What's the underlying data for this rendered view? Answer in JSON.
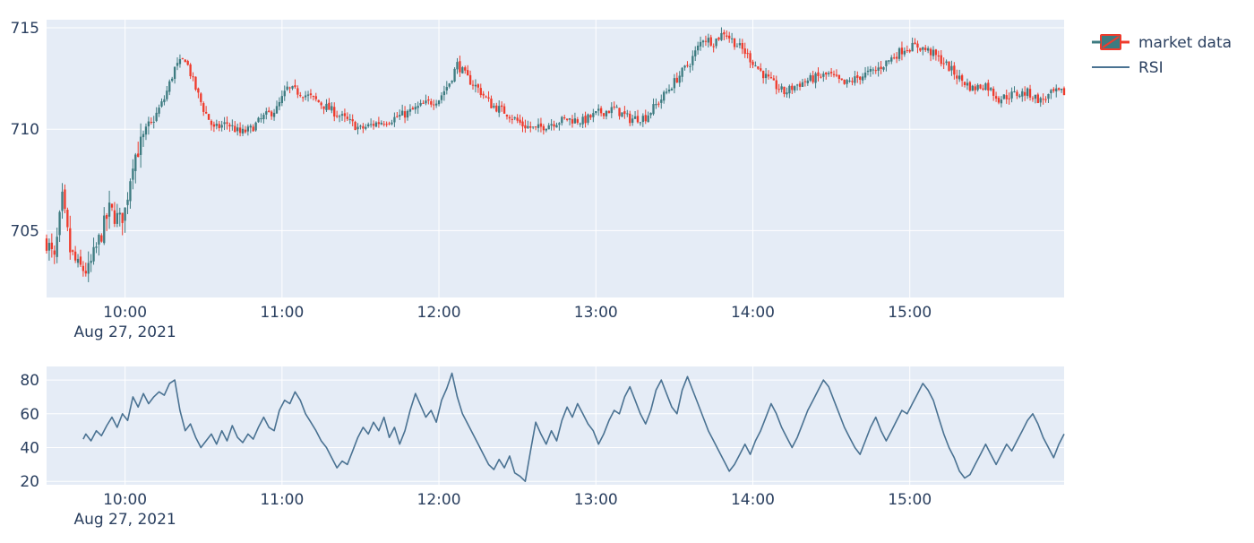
{
  "colors": {
    "plot_bg": "#e5ecf6",
    "grid": "#ffffff",
    "increasing": "#3d7b80",
    "decreasing": "#ef3b2c",
    "rsi_line": "#4a7292",
    "text": "#2a3f5f"
  },
  "legend": {
    "items": [
      {
        "label": "market data",
        "symbol": "candlestick"
      },
      {
        "label": "RSI",
        "symbol": "line"
      }
    ],
    "placement": "top-right"
  },
  "chart_data": [
    {
      "type": "candlestick",
      "series_name": "market data",
      "x_axis": {
        "ticks": [
          "10:00",
          "11:00",
          "12:00",
          "13:00",
          "14:00",
          "15:00"
        ],
        "date_label": "Aug 27, 2021",
        "range": [
          "09:30",
          "15:59"
        ],
        "bar_interval_minutes": 1
      },
      "y_axis": {
        "range": [
          701.7,
          715.4
        ],
        "ticks": [
          705,
          710,
          715
        ]
      },
      "grid": true,
      "close_anchors": [
        [
          "09:30",
          704.5
        ],
        [
          "09:33",
          703.5
        ],
        [
          "09:36",
          706.5
        ],
        [
          "09:39",
          704.0
        ],
        [
          "09:42",
          703.2
        ],
        [
          "09:46",
          703.0
        ],
        [
          "09:50",
          704.5
        ],
        [
          "09:54",
          706.0
        ],
        [
          "09:58",
          705.5
        ],
        [
          "10:00",
          706.0
        ],
        [
          "10:03",
          708.5
        ],
        [
          "10:07",
          709.5
        ],
        [
          "10:11",
          710.5
        ],
        [
          "10:15",
          711.5
        ],
        [
          "10:19",
          713.0
        ],
        [
          "10:23",
          713.5
        ],
        [
          "10:27",
          712.0
        ],
        [
          "10:30",
          711.0
        ],
        [
          "10:34",
          710.0
        ],
        [
          "10:39",
          710.3
        ],
        [
          "10:44",
          709.8
        ],
        [
          "10:48",
          710.0
        ],
        [
          "10:53",
          710.6
        ],
        [
          "10:58",
          711.0
        ],
        [
          "11:02",
          712.0
        ],
        [
          "11:07",
          711.8
        ],
        [
          "11:12",
          711.5
        ],
        [
          "11:18",
          711.0
        ],
        [
          "11:24",
          710.5
        ],
        [
          "11:30",
          710.0
        ],
        [
          "11:36",
          710.3
        ],
        [
          "11:42",
          710.5
        ],
        [
          "11:48",
          710.8
        ],
        [
          "11:54",
          711.2
        ],
        [
          "12:00",
          711.5
        ],
        [
          "12:04",
          712.3
        ],
        [
          "12:07",
          713.2
        ],
        [
          "12:11",
          712.5
        ],
        [
          "12:15",
          712.0
        ],
        [
          "12:20",
          711.2
        ],
        [
          "12:26",
          710.8
        ],
        [
          "12:32",
          710.2
        ],
        [
          "12:37",
          710.0
        ],
        [
          "12:43",
          710.3
        ],
        [
          "12:49",
          710.5
        ],
        [
          "12:55",
          710.4
        ],
        [
          "13:01",
          710.8
        ],
        [
          "13:07",
          711.0
        ],
        [
          "13:13",
          710.5
        ],
        [
          "13:19",
          710.6
        ],
        [
          "13:25",
          711.5
        ],
        [
          "13:31",
          712.5
        ],
        [
          "13:36",
          713.3
        ],
        [
          "13:41",
          714.5
        ],
        [
          "13:45",
          714.3
        ],
        [
          "13:49",
          714.8
        ],
        [
          "13:52",
          714.4
        ],
        [
          "13:57",
          713.8
        ],
        [
          "14:02",
          713.0
        ],
        [
          "14:07",
          712.3
        ],
        [
          "14:12",
          711.8
        ],
        [
          "14:17",
          712.2
        ],
        [
          "14:23",
          712.5
        ],
        [
          "14:29",
          712.7
        ],
        [
          "14:35",
          712.2
        ],
        [
          "14:41",
          712.6
        ],
        [
          "14:47",
          712.9
        ],
        [
          "14:53",
          713.5
        ],
        [
          "14:58",
          714.0
        ],
        [
          "15:03",
          714.1
        ],
        [
          "15:08",
          713.8
        ],
        [
          "15:13",
          713.3
        ],
        [
          "15:19",
          712.5
        ],
        [
          "15:24",
          712.0
        ],
        [
          "15:29",
          712.2
        ],
        [
          "15:34",
          711.5
        ],
        [
          "15:39",
          711.7
        ],
        [
          "15:45",
          711.8
        ],
        [
          "15:50",
          711.4
        ],
        [
          "15:55",
          711.8
        ],
        [
          "15:59",
          711.8
        ]
      ]
    },
    {
      "type": "line",
      "series_name": "RSI",
      "x_axis": {
        "ticks": [
          "10:00",
          "11:00",
          "12:00",
          "13:00",
          "14:00",
          "15:00"
        ],
        "date_label": "Aug 27, 2021",
        "range": [
          "09:30",
          "15:59"
        ]
      },
      "y_axis": {
        "range": [
          18,
          88
        ],
        "ticks": [
          20,
          40,
          60,
          80
        ]
      },
      "grid": true,
      "points": [
        [
          "09:44",
          45
        ],
        [
          "09:45",
          48
        ],
        [
          "09:47",
          44
        ],
        [
          "09:49",
          50
        ],
        [
          "09:51",
          47
        ],
        [
          "09:53",
          53
        ],
        [
          "09:55",
          58
        ],
        [
          "09:57",
          52
        ],
        [
          "09:59",
          60
        ],
        [
          "10:01",
          56
        ],
        [
          "10:03",
          70
        ],
        [
          "10:05",
          64
        ],
        [
          "10:07",
          72
        ],
        [
          "10:09",
          66
        ],
        [
          "10:11",
          70
        ],
        [
          "10:13",
          73
        ],
        [
          "10:15",
          71
        ],
        [
          "10:17",
          78
        ],
        [
          "10:19",
          80
        ],
        [
          "10:21",
          62
        ],
        [
          "10:23",
          50
        ],
        [
          "10:25",
          54
        ],
        [
          "10:27",
          46
        ],
        [
          "10:29",
          40
        ],
        [
          "10:31",
          44
        ],
        [
          "10:33",
          48
        ],
        [
          "10:35",
          42
        ],
        [
          "10:37",
          50
        ],
        [
          "10:39",
          44
        ],
        [
          "10:41",
          53
        ],
        [
          "10:43",
          46
        ],
        [
          "10:45",
          43
        ],
        [
          "10:47",
          48
        ],
        [
          "10:49",
          45
        ],
        [
          "10:51",
          52
        ],
        [
          "10:53",
          58
        ],
        [
          "10:55",
          52
        ],
        [
          "10:57",
          50
        ],
        [
          "10:59",
          62
        ],
        [
          "11:01",
          68
        ],
        [
          "11:03",
          66
        ],
        [
          "11:05",
          73
        ],
        [
          "11:07",
          68
        ],
        [
          "11:09",
          60
        ],
        [
          "11:11",
          55
        ],
        [
          "11:13",
          50
        ],
        [
          "11:15",
          44
        ],
        [
          "11:17",
          40
        ],
        [
          "11:19",
          34
        ],
        [
          "11:21",
          28
        ],
        [
          "11:23",
          32
        ],
        [
          "11:25",
          30
        ],
        [
          "11:27",
          38
        ],
        [
          "11:29",
          46
        ],
        [
          "11:31",
          52
        ],
        [
          "11:33",
          48
        ],
        [
          "11:35",
          55
        ],
        [
          "11:37",
          50
        ],
        [
          "11:39",
          58
        ],
        [
          "11:41",
          46
        ],
        [
          "11:43",
          52
        ],
        [
          "11:45",
          42
        ],
        [
          "11:47",
          50
        ],
        [
          "11:49",
          62
        ],
        [
          "11:51",
          72
        ],
        [
          "11:53",
          65
        ],
        [
          "11:55",
          58
        ],
        [
          "11:57",
          62
        ],
        [
          "11:59",
          55
        ],
        [
          "12:01",
          68
        ],
        [
          "12:03",
          75
        ],
        [
          "12:05",
          84
        ],
        [
          "12:07",
          70
        ],
        [
          "12:09",
          60
        ],
        [
          "12:11",
          54
        ],
        [
          "12:13",
          48
        ],
        [
          "12:15",
          42
        ],
        [
          "12:17",
          36
        ],
        [
          "12:19",
          30
        ],
        [
          "12:21",
          27
        ],
        [
          "12:23",
          33
        ],
        [
          "12:25",
          28
        ],
        [
          "12:27",
          35
        ],
        [
          "12:29",
          25
        ],
        [
          "12:31",
          23
        ],
        [
          "12:33",
          20
        ],
        [
          "12:35",
          38
        ],
        [
          "12:37",
          55
        ],
        [
          "12:39",
          48
        ],
        [
          "12:41",
          42
        ],
        [
          "12:43",
          50
        ],
        [
          "12:45",
          44
        ],
        [
          "12:47",
          56
        ],
        [
          "12:49",
          64
        ],
        [
          "12:51",
          58
        ],
        [
          "12:53",
          66
        ],
        [
          "12:55",
          60
        ],
        [
          "12:57",
          54
        ],
        [
          "12:59",
          50
        ],
        [
          "13:01",
          42
        ],
        [
          "13:03",
          48
        ],
        [
          "13:05",
          56
        ],
        [
          "13:07",
          62
        ],
        [
          "13:09",
          60
        ],
        [
          "13:11",
          70
        ],
        [
          "13:13",
          76
        ],
        [
          "13:15",
          68
        ],
        [
          "13:17",
          60
        ],
        [
          "13:19",
          54
        ],
        [
          "13:21",
          62
        ],
        [
          "13:23",
          74
        ],
        [
          "13:25",
          80
        ],
        [
          "13:27",
          72
        ],
        [
          "13:29",
          64
        ],
        [
          "13:31",
          60
        ],
        [
          "13:33",
          74
        ],
        [
          "13:35",
          82
        ],
        [
          "13:37",
          74
        ],
        [
          "13:39",
          66
        ],
        [
          "13:41",
          58
        ],
        [
          "13:43",
          50
        ],
        [
          "13:45",
          44
        ],
        [
          "13:47",
          38
        ],
        [
          "13:49",
          32
        ],
        [
          "13:51",
          26
        ],
        [
          "13:53",
          30
        ],
        [
          "13:55",
          36
        ],
        [
          "13:57",
          42
        ],
        [
          "13:59",
          36
        ],
        [
          "14:01",
          44
        ],
        [
          "14:03",
          50
        ],
        [
          "14:05",
          58
        ],
        [
          "14:07",
          66
        ],
        [
          "14:09",
          60
        ],
        [
          "14:11",
          52
        ],
        [
          "14:13",
          46
        ],
        [
          "14:15",
          40
        ],
        [
          "14:17",
          46
        ],
        [
          "14:19",
          54
        ],
        [
          "14:21",
          62
        ],
        [
          "14:23",
          68
        ],
        [
          "14:25",
          74
        ],
        [
          "14:27",
          80
        ],
        [
          "14:29",
          76
        ],
        [
          "14:31",
          68
        ],
        [
          "14:33",
          60
        ],
        [
          "14:35",
          52
        ],
        [
          "14:37",
          46
        ],
        [
          "14:39",
          40
        ],
        [
          "14:41",
          36
        ],
        [
          "14:43",
          44
        ],
        [
          "14:45",
          52
        ],
        [
          "14:47",
          58
        ],
        [
          "14:49",
          50
        ],
        [
          "14:51",
          44
        ],
        [
          "14:53",
          50
        ],
        [
          "14:55",
          56
        ],
        [
          "14:57",
          62
        ],
        [
          "14:59",
          60
        ],
        [
          "15:01",
          66
        ],
        [
          "15:03",
          72
        ],
        [
          "15:05",
          78
        ],
        [
          "15:07",
          74
        ],
        [
          "15:09",
          68
        ],
        [
          "15:11",
          58
        ],
        [
          "15:13",
          48
        ],
        [
          "15:15",
          40
        ],
        [
          "15:17",
          34
        ],
        [
          "15:19",
          26
        ],
        [
          "15:21",
          22
        ],
        [
          "15:23",
          24
        ],
        [
          "15:25",
          30
        ],
        [
          "15:27",
          36
        ],
        [
          "15:29",
          42
        ],
        [
          "15:31",
          36
        ],
        [
          "15:33",
          30
        ],
        [
          "15:35",
          36
        ],
        [
          "15:37",
          42
        ],
        [
          "15:39",
          38
        ],
        [
          "15:41",
          44
        ],
        [
          "15:43",
          50
        ],
        [
          "15:45",
          56
        ],
        [
          "15:47",
          60
        ],
        [
          "15:49",
          54
        ],
        [
          "15:51",
          46
        ],
        [
          "15:53",
          40
        ],
        [
          "15:55",
          34
        ],
        [
          "15:57",
          42
        ],
        [
          "15:59",
          48
        ]
      ]
    }
  ]
}
